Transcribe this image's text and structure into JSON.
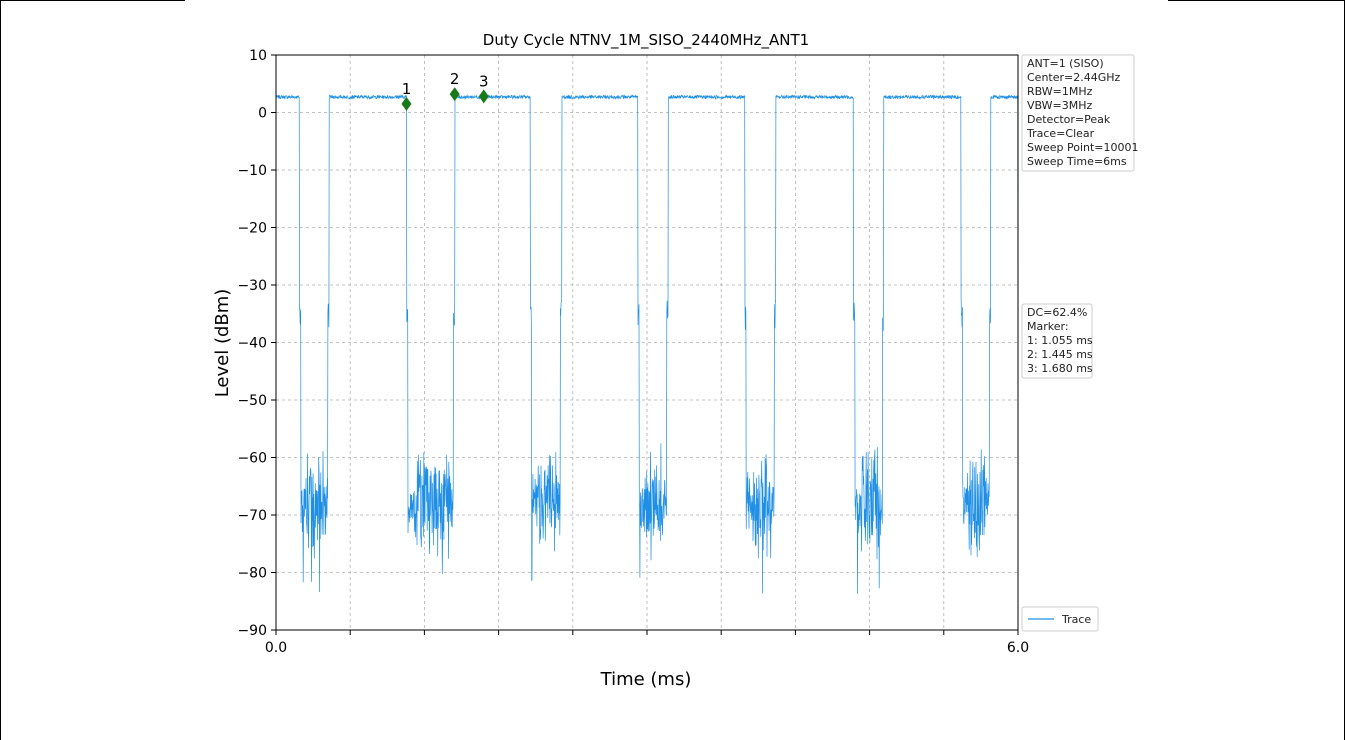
{
  "chart_data": {
    "type": "line",
    "title": "Duty Cycle NTNV_1M_SISO_2440MHz_ANT1",
    "xlabel": "Time (ms)",
    "ylabel": "Level (dBm)",
    "xlim": [
      0,
      6
    ],
    "ylim": [
      -90,
      10
    ],
    "x_tick_labels": [
      "0.0",
      "6.0"
    ],
    "y_ticks": [
      10,
      0,
      -10,
      -20,
      -30,
      -40,
      -50,
      -60,
      -70,
      -80,
      -90
    ],
    "y_tick_labels": [
      "10",
      "0",
      "−10",
      "−20",
      "−30",
      "−40",
      "−50",
      "−60",
      "−70",
      "−80",
      "−90"
    ],
    "grid": true,
    "legend": {
      "placement": "bottom-right-outside",
      "entries": [
        "Trace"
      ]
    },
    "series": [
      {
        "name": "Trace",
        "color": "#1f8fe5",
        "high_level_dbm": 2.7,
        "noise_floor_dbm": -68,
        "on_segments_ms": [
          [
            0.0,
            0.19
          ],
          [
            0.43,
            1.055
          ],
          [
            1.445,
            2.055
          ],
          [
            2.31,
            2.925
          ],
          [
            3.17,
            3.79
          ],
          [
            4.04,
            4.67
          ],
          [
            4.915,
            5.54
          ],
          [
            5.78,
            6.0
          ]
        ]
      }
    ],
    "markers": [
      {
        "label": "1",
        "x": 1.055,
        "y": 1.5
      },
      {
        "label": "2",
        "x": 1.445,
        "y": 3.2
      },
      {
        "label": "3",
        "x": 1.68,
        "y": 2.8
      }
    ],
    "marker_color": "#1a7a1a",
    "info_box": [
      "ANT=1 (SISO)",
      "Center=2.44GHz",
      "RBW=1MHz",
      "VBW=3MHz",
      "Detector=Peak",
      "Trace=Clear",
      "Sweep Point=10001",
      "Sweep Time=6ms"
    ],
    "result_box": [
      "DC=62.4%",
      "Marker:",
      "1: 1.055 ms",
      "2: 1.445 ms",
      "3: 1.680 ms"
    ]
  }
}
